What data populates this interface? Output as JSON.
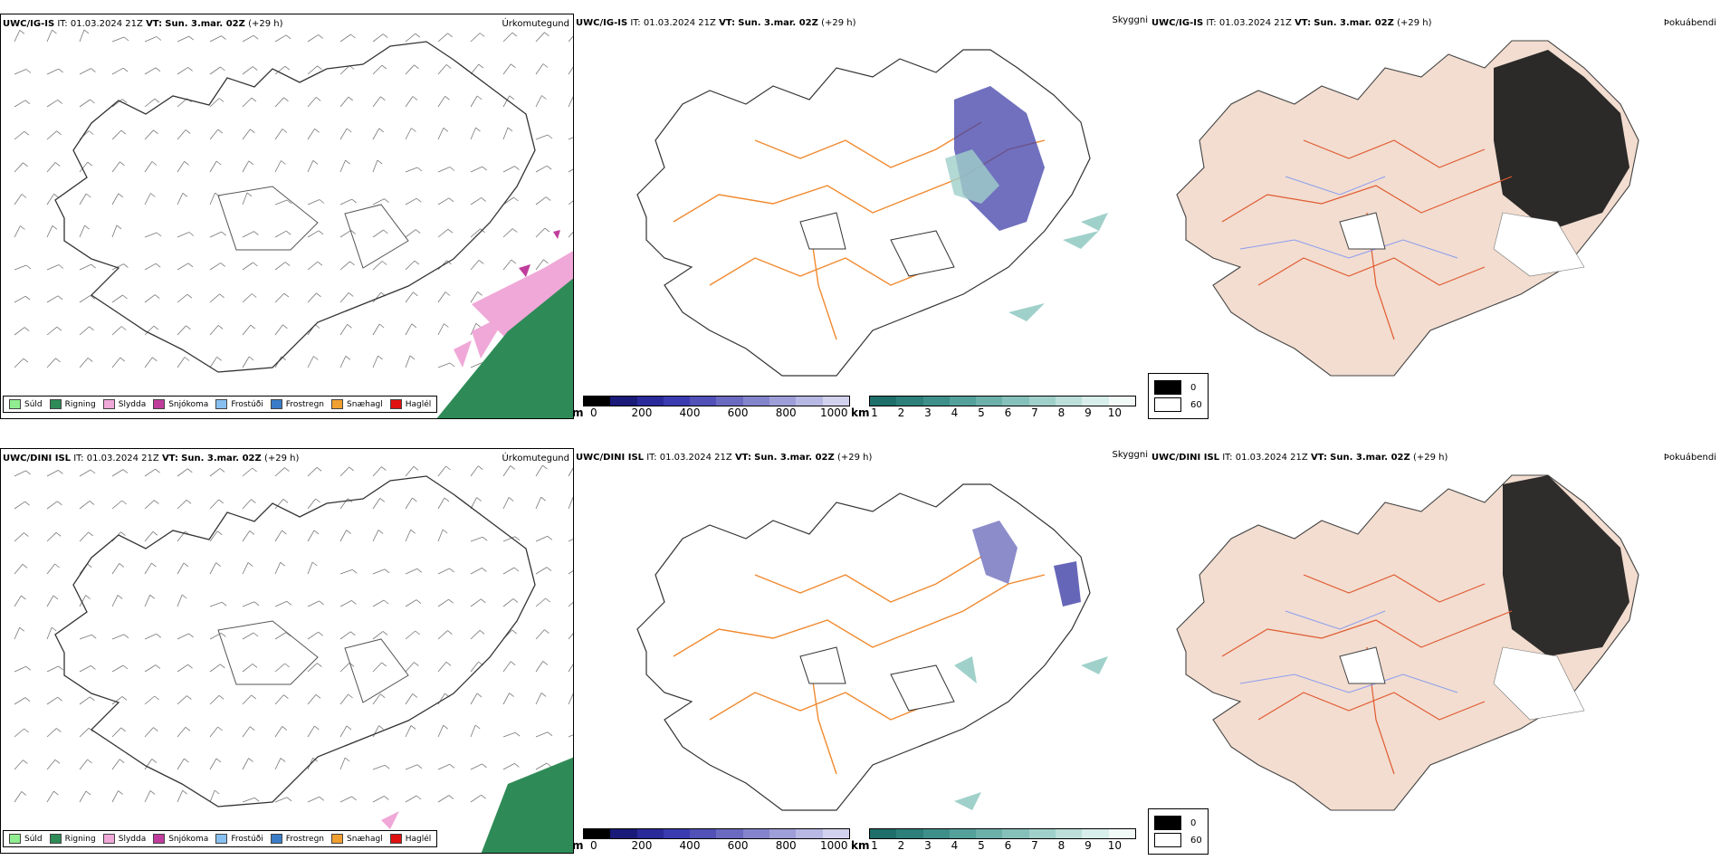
{
  "rows": [
    {
      "model": "UWC/IG-IS",
      "it_label": "IT:",
      "it_value": "01.03.2024 21Z",
      "vt_label": "VT:",
      "vt_value": "Sun. 3.mar. 02Z",
      "lead": "(+29 h)"
    },
    {
      "model": "UWC/DINI ISL",
      "it_label": "IT:",
      "it_value": "01.03.2024 21Z",
      "vt_label": "VT:",
      "vt_value": "Sun. 3.mar. 02Z",
      "lead": "(+29 h)"
    }
  ],
  "panel_labels": {
    "precip": "Úrkomutegund",
    "cloud": "Skyggni",
    "fog": "Þokuábendi"
  },
  "precip_legend": [
    {
      "label": "Súld",
      "color": "#90ee90"
    },
    {
      "label": "Rigning",
      "color": "#2e8b57"
    },
    {
      "label": "Slydda",
      "color": "#f0a8d8"
    },
    {
      "label": "Snjókoma",
      "color": "#c03c9c"
    },
    {
      "label": "Frostúði",
      "color": "#87c0f0"
    },
    {
      "label": "Frostregn",
      "color": "#3a7cc8"
    },
    {
      "label": "Snæhagl",
      "color": "#f0a030"
    },
    {
      "label": "Haglél",
      "color": "#e01010"
    }
  ],
  "cloud_base_scale": {
    "unit": "m",
    "ticks": [
      "0",
      "200",
      "400",
      "600",
      "800",
      "1000"
    ],
    "colors": [
      "#000000",
      "#1a1a78",
      "#2a2a9a",
      "#3b3bb0",
      "#5151b8",
      "#6a6ac0",
      "#8484cc",
      "#9e9ed8",
      "#b8b8e4",
      "#d2d2ee"
    ]
  },
  "visibility_scale": {
    "unit": "km",
    "ticks": [
      "1",
      "2",
      "3",
      "4",
      "5",
      "6",
      "7",
      "8",
      "9",
      "10"
    ],
    "colors": [
      "#1e6e6a",
      "#2d7f7a",
      "#3e8f8a",
      "#54a09a",
      "#6cb0aa",
      "#86c0ba",
      "#a0d0ca",
      "#bcdfda",
      "#d8eeea",
      "#f2faf8"
    ]
  },
  "fog_legend": [
    {
      "label": "0",
      "color": "#000000"
    },
    {
      "label": "60",
      "color": "#ffffff"
    }
  ]
}
